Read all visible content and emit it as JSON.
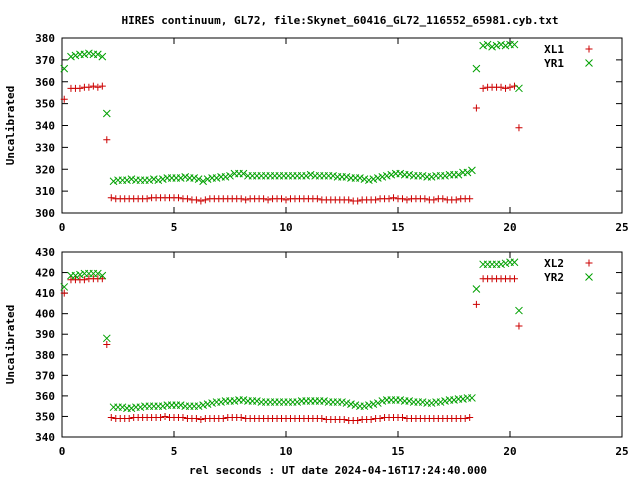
{
  "title": "HIRES continuum, GL72, file:Skynet_60416_GL72_116552_65981.cyb.txt",
  "xlabel": "rel seconds : UT date 2024-04-16T17:24:40.000",
  "colors": {
    "red": "#cc0000",
    "green": "#00a000"
  },
  "chart_data": [
    {
      "type": "scatter",
      "ylabel": "Uncalibrated",
      "xlim": [
        0,
        25
      ],
      "ylim": [
        300,
        380
      ],
      "xticks": [
        0,
        5,
        10,
        15,
        20,
        25
      ],
      "yticks": [
        300,
        310,
        320,
        330,
        340,
        350,
        360,
        370,
        380
      ],
      "legend_position": "top-right",
      "series": [
        {
          "name": "XL1",
          "marker": "plus",
          "color": "#cc0000",
          "x": [
            0.1,
            0.4,
            0.6,
            0.8,
            1.0,
            1.2,
            1.4,
            1.6,
            1.8,
            2.0,
            2.2,
            2.4,
            2.6,
            2.8,
            3.0,
            3.2,
            3.4,
            3.6,
            3.8,
            4.0,
            4.2,
            4.4,
            4.6,
            4.8,
            5.0,
            5.2,
            5.4,
            5.6,
            5.8,
            6.0,
            6.2,
            6.4,
            6.6,
            6.8,
            7.0,
            7.2,
            7.4,
            7.6,
            7.8,
            8.0,
            8.2,
            8.4,
            8.6,
            8.8,
            9.0,
            9.2,
            9.4,
            9.6,
            9.8,
            10.0,
            10.2,
            10.4,
            10.6,
            10.8,
            11.0,
            11.2,
            11.4,
            11.6,
            11.8,
            12.0,
            12.2,
            12.4,
            12.6,
            12.8,
            13.0,
            13.2,
            13.4,
            13.6,
            13.8,
            14.0,
            14.2,
            14.4,
            14.6,
            14.8,
            15.0,
            15.2,
            15.4,
            15.6,
            15.8,
            16.0,
            16.2,
            16.4,
            16.6,
            16.8,
            17.0,
            17.2,
            17.4,
            17.6,
            17.8,
            18.0,
            18.2,
            18.5,
            18.8,
            19.0,
            19.2,
            19.4,
            19.6,
            19.8,
            20.0,
            20.2,
            20.4
          ],
          "y": [
            352,
            357,
            357,
            357,
            357.5,
            357.5,
            358,
            357.5,
            358,
            333.5,
            307,
            306.5,
            306.5,
            306.5,
            306.5,
            306.5,
            306.5,
            306.5,
            306.5,
            307,
            307,
            307,
            307,
            307,
            307,
            307,
            306.5,
            306.5,
            306,
            306,
            305.5,
            306,
            306.5,
            306.5,
            306.5,
            306.5,
            306.5,
            306.5,
            306.5,
            306.5,
            306,
            306.5,
            306.5,
            306.5,
            306.5,
            306,
            306.5,
            306.5,
            306.5,
            306,
            306.5,
            306.5,
            306.5,
            306.5,
            306.5,
            306.5,
            306.5,
            306,
            306,
            306,
            306,
            306,
            306,
            306,
            305.5,
            305.5,
            306,
            306,
            306,
            306,
            306.5,
            306.5,
            306.5,
            307,
            306.5,
            306.5,
            306,
            306.5,
            306.5,
            306.5,
            306.5,
            306,
            306,
            306.5,
            306.5,
            306,
            306,
            306,
            306.5,
            306.5,
            306.5,
            348,
            357,
            357.5,
            357.5,
            357.5,
            357.5,
            357,
            357.5,
            358,
            339
          ]
        },
        {
          "name": "YR1",
          "marker": "cross",
          "color": "#00a000",
          "x": [
            0.1,
            0.4,
            0.6,
            0.8,
            1.0,
            1.2,
            1.4,
            1.6,
            1.8,
            2.0,
            2.3,
            2.5,
            2.7,
            2.9,
            3.1,
            3.3,
            3.5,
            3.7,
            3.9,
            4.1,
            4.3,
            4.5,
            4.7,
            4.9,
            5.1,
            5.3,
            5.5,
            5.7,
            5.9,
            6.1,
            6.3,
            6.5,
            6.7,
            6.9,
            7.1,
            7.3,
            7.5,
            7.7,
            7.9,
            8.1,
            8.3,
            8.5,
            8.7,
            8.9,
            9.1,
            9.3,
            9.5,
            9.7,
            9.9,
            10.1,
            10.3,
            10.5,
            10.7,
            10.9,
            11.1,
            11.3,
            11.5,
            11.7,
            11.9,
            12.1,
            12.3,
            12.5,
            12.7,
            12.9,
            13.1,
            13.3,
            13.5,
            13.7,
            13.9,
            14.1,
            14.3,
            14.5,
            14.7,
            14.9,
            15.1,
            15.3,
            15.5,
            15.7,
            15.9,
            16.1,
            16.3,
            16.5,
            16.7,
            16.9,
            17.1,
            17.3,
            17.5,
            17.7,
            17.9,
            18.1,
            18.3,
            18.5,
            18.8,
            19.0,
            19.2,
            19.4,
            19.6,
            19.8,
            20.0,
            20.2,
            20.4
          ],
          "y": [
            366,
            371.5,
            372,
            372.5,
            372.5,
            373,
            372.5,
            372.5,
            371.5,
            345.5,
            314.5,
            315,
            315,
            315,
            315.5,
            315,
            315,
            315,
            315,
            315.5,
            315,
            315.5,
            316,
            316,
            316,
            316,
            316.5,
            316,
            316,
            315.5,
            314.5,
            315.5,
            316,
            316,
            316.5,
            316.5,
            317,
            318,
            318,
            318,
            317,
            317,
            317,
            317,
            317,
            317,
            317,
            317,
            317,
            317,
            317,
            317,
            317,
            317,
            317.5,
            317,
            317,
            317,
            317,
            317,
            316.5,
            316.5,
            316.5,
            316,
            316,
            316,
            315.5,
            315,
            315.5,
            316,
            316.5,
            317,
            317.5,
            318,
            318,
            317.5,
            317.5,
            317,
            317,
            317,
            316.5,
            316.5,
            317,
            317,
            317,
            317.5,
            317.5,
            317.5,
            318.5,
            318.5,
            319.5,
            366,
            376.5,
            377,
            376,
            376.5,
            377,
            376.5,
            377,
            377,
            357
          ]
        }
      ]
    },
    {
      "type": "scatter",
      "ylabel": "Uncalibrated",
      "xlim": [
        0,
        25
      ],
      "ylim": [
        340,
        430
      ],
      "xticks": [
        0,
        5,
        10,
        15,
        20,
        25
      ],
      "yticks": [
        340,
        350,
        360,
        370,
        380,
        390,
        400,
        410,
        420,
        430
      ],
      "legend_position": "top-right",
      "series": [
        {
          "name": "XL2",
          "marker": "plus",
          "color": "#cc0000",
          "x": [
            0.1,
            0.4,
            0.6,
            0.8,
            1.0,
            1.2,
            1.4,
            1.6,
            1.8,
            2.0,
            2.2,
            2.4,
            2.6,
            2.8,
            3.0,
            3.2,
            3.4,
            3.6,
            3.8,
            4.0,
            4.2,
            4.4,
            4.6,
            4.8,
            5.0,
            5.2,
            5.4,
            5.6,
            5.8,
            6.0,
            6.2,
            6.4,
            6.6,
            6.8,
            7.0,
            7.2,
            7.4,
            7.6,
            7.8,
            8.0,
            8.2,
            8.4,
            8.6,
            8.8,
            9.0,
            9.2,
            9.4,
            9.6,
            9.8,
            10.0,
            10.2,
            10.4,
            10.6,
            10.8,
            11.0,
            11.2,
            11.4,
            11.6,
            11.8,
            12.0,
            12.2,
            12.4,
            12.6,
            12.8,
            13.0,
            13.2,
            13.4,
            13.6,
            13.8,
            14.0,
            14.2,
            14.4,
            14.6,
            14.8,
            15.0,
            15.2,
            15.4,
            15.6,
            15.8,
            16.0,
            16.2,
            16.4,
            16.6,
            16.8,
            17.0,
            17.2,
            17.4,
            17.6,
            17.8,
            18.0,
            18.2,
            18.5,
            18.8,
            19.0,
            19.2,
            19.4,
            19.6,
            19.8,
            20.0,
            20.2,
            20.4
          ],
          "y": [
            410,
            416.5,
            416.5,
            416.5,
            416.5,
            417,
            417,
            417,
            417,
            385,
            349.5,
            349,
            349,
            349,
            349,
            349.5,
            349.5,
            349.5,
            349.5,
            349.5,
            349.5,
            349.5,
            350,
            349.5,
            349.5,
            349.5,
            349.5,
            349,
            349,
            349,
            348.5,
            349,
            349,
            349,
            349,
            349,
            349.5,
            349.5,
            349.5,
            349.5,
            349,
            349,
            349,
            349,
            349,
            349,
            349,
            349,
            349,
            349,
            349,
            349,
            349,
            349,
            349,
            349,
            349,
            349,
            348.5,
            348.5,
            348.5,
            348.5,
            348.5,
            348,
            348,
            348,
            348.5,
            348.5,
            348.5,
            349,
            349,
            349.5,
            349.5,
            349.5,
            349.5,
            349.5,
            349,
            349,
            349,
            349,
            349,
            349,
            349,
            349,
            349,
            349,
            349,
            349,
            349,
            349,
            349.5,
            404.5,
            417,
            417,
            417,
            417,
            417,
            417,
            417,
            417,
            394
          ]
        },
        {
          "name": "YR2",
          "marker": "cross",
          "color": "#00a000",
          "x": [
            0.1,
            0.4,
            0.6,
            0.8,
            1.0,
            1.2,
            1.4,
            1.6,
            1.8,
            2.0,
            2.3,
            2.5,
            2.7,
            2.9,
            3.1,
            3.3,
            3.5,
            3.7,
            3.9,
            4.1,
            4.3,
            4.5,
            4.7,
            4.9,
            5.1,
            5.3,
            5.5,
            5.7,
            5.9,
            6.1,
            6.3,
            6.5,
            6.7,
            6.9,
            7.1,
            7.3,
            7.5,
            7.7,
            7.9,
            8.1,
            8.3,
            8.5,
            8.7,
            8.9,
            9.1,
            9.3,
            9.5,
            9.7,
            9.9,
            10.1,
            10.3,
            10.5,
            10.7,
            10.9,
            11.1,
            11.3,
            11.5,
            11.7,
            11.9,
            12.1,
            12.3,
            12.5,
            12.7,
            12.9,
            13.1,
            13.3,
            13.5,
            13.7,
            13.9,
            14.1,
            14.3,
            14.5,
            14.7,
            14.9,
            15.1,
            15.3,
            15.5,
            15.7,
            15.9,
            16.1,
            16.3,
            16.5,
            16.7,
            16.9,
            17.1,
            17.3,
            17.5,
            17.7,
            17.9,
            18.1,
            18.3,
            18.5,
            18.8,
            19.0,
            19.2,
            19.4,
            19.6,
            19.8,
            20.0,
            20.2,
            20.4
          ],
          "y": [
            413,
            418.5,
            418.5,
            419,
            419.5,
            419.5,
            419.5,
            419.5,
            418.5,
            388,
            354.5,
            354.5,
            354.5,
            354,
            354,
            354.5,
            354.5,
            355,
            355,
            355,
            355,
            355,
            355.5,
            355.5,
            355.5,
            355.5,
            355,
            355,
            355,
            355,
            355.5,
            356,
            356.5,
            357,
            357,
            357.5,
            357.5,
            357.5,
            358,
            358,
            357.5,
            357.5,
            357.5,
            357,
            357,
            357,
            357,
            357,
            357,
            357,
            357,
            357,
            357.5,
            357.5,
            357.5,
            357.5,
            357.5,
            357.5,
            357,
            357,
            357,
            357,
            356.5,
            356,
            355.5,
            355,
            355,
            355.5,
            356,
            356.5,
            357.5,
            358,
            358,
            358,
            358,
            357.5,
            357.5,
            357,
            357,
            357,
            356.5,
            356.5,
            357,
            357,
            357.5,
            358,
            358,
            358.5,
            358.5,
            359,
            359,
            412,
            424,
            424,
            424,
            424,
            424,
            424.5,
            425,
            425,
            401.5
          ]
        }
      ]
    }
  ]
}
